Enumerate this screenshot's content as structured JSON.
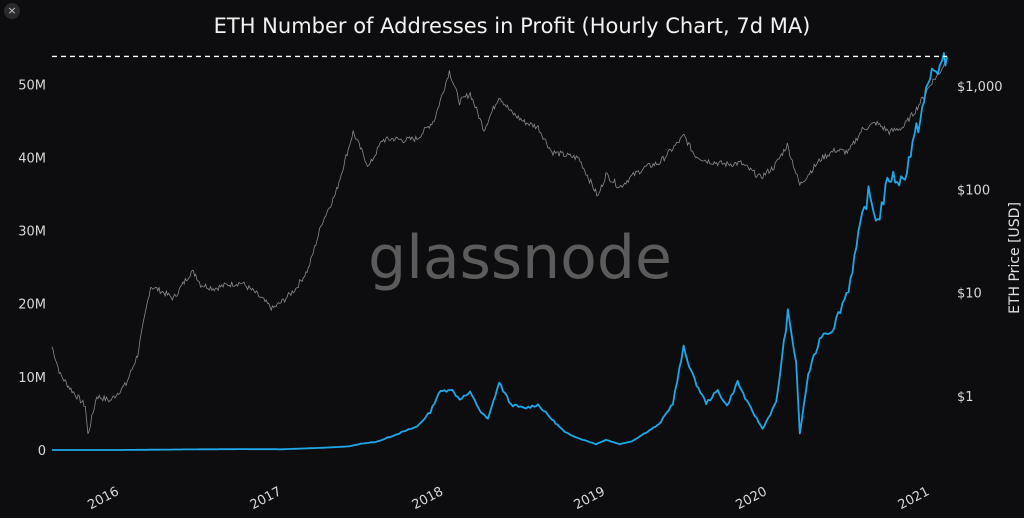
{
  "window": {
    "close_glyph": "×"
  },
  "watermark": "glassnode",
  "colors": {
    "background": "#0d0d0f",
    "profit_line": "#1fa8e8",
    "price_line": "#8a8a8a",
    "ath_line": "#ffffff"
  },
  "chart_data": {
    "type": "line",
    "title": "ETH Number of Addresses in Profit (Hourly Chart, 7d MA)",
    "xlabel": "",
    "ylabel_left": "",
    "ylabel_right": "ETH Price [USD]",
    "x_ticks": [
      "2016",
      "2017",
      "2018",
      "2019",
      "2020",
      "2021"
    ],
    "y_left_ticks": [
      "0",
      "10M",
      "20M",
      "30M",
      "40M",
      "50M"
    ],
    "y_left_values": [
      0,
      10000000,
      20000000,
      30000000,
      40000000,
      50000000
    ],
    "y_right_ticks": [
      "$1",
      "$10",
      "$100",
      "$1,000"
    ],
    "y_right_values": [
      1,
      10,
      100,
      1000
    ],
    "y_left_range": [
      0,
      54000000
    ],
    "y_right_scale": "log",
    "y_right_range": [
      0.3,
      2000
    ],
    "x_range": [
      "2015-08-01",
      "2021-02-08"
    ],
    "reference_line": {
      "label": "",
      "y": 53800000,
      "style": "dashed"
    },
    "grid": false,
    "series": [
      {
        "axis": "left",
        "points": [
          [
            "2015-08-01",
            0
          ],
          [
            "2016-01-01",
            0
          ],
          [
            "2016-06-01",
            80000
          ],
          [
            "2016-10-01",
            120000
          ],
          [
            "2017-01-01",
            100000
          ],
          [
            "2017-04-01",
            300000
          ],
          [
            "2017-06-01",
            500000
          ],
          [
            "2017-07-01",
            900000
          ],
          [
            "2017-08-01",
            1100000
          ],
          [
            "2017-09-01",
            1800000
          ],
          [
            "2017-10-01",
            2500000
          ],
          [
            "2017-11-01",
            3200000
          ],
          [
            "2017-12-01",
            5200000
          ],
          [
            "2017-12-20",
            7800000
          ],
          [
            "2018-01-15",
            8400000
          ],
          [
            "2018-02-05",
            7000000
          ],
          [
            "2018-03-01",
            7800000
          ],
          [
            "2018-03-25",
            5200000
          ],
          [
            "2018-04-10",
            4200000
          ],
          [
            "2018-05-05",
            9200000
          ],
          [
            "2018-06-01",
            6200000
          ],
          [
            "2018-07-01",
            5700000
          ],
          [
            "2018-08-01",
            6200000
          ],
          [
            "2018-09-01",
            4200000
          ],
          [
            "2018-10-01",
            2400000
          ],
          [
            "2018-11-01",
            1600000
          ],
          [
            "2018-12-10",
            800000
          ],
          [
            "2019-01-01",
            1400000
          ],
          [
            "2019-02-01",
            800000
          ],
          [
            "2019-03-01",
            1200000
          ],
          [
            "2019-04-01",
            2400000
          ],
          [
            "2019-05-01",
            3500000
          ],
          [
            "2019-06-01",
            6400000
          ],
          [
            "2019-06-25",
            13900000
          ],
          [
            "2019-07-20",
            9500000
          ],
          [
            "2019-08-15",
            6400000
          ],
          [
            "2019-09-10",
            8100000
          ],
          [
            "2019-10-01",
            6000000
          ],
          [
            "2019-10-25",
            9300000
          ],
          [
            "2019-11-15",
            6600000
          ],
          [
            "2019-12-20",
            2900000
          ],
          [
            "2020-01-20",
            6500000
          ],
          [
            "2020-02-15",
            18700000
          ],
          [
            "2020-03-05",
            12000000
          ],
          [
            "2020-03-13",
            2200000
          ],
          [
            "2020-04-01",
            10300000
          ],
          [
            "2020-05-01",
            15800000
          ],
          [
            "2020-05-25",
            16400000
          ],
          [
            "2020-07-01",
            22100000
          ],
          [
            "2020-08-01",
            31800000
          ],
          [
            "2020-08-15",
            35000000
          ],
          [
            "2020-09-05",
            31200000
          ],
          [
            "2020-10-01",
            37400000
          ],
          [
            "2020-11-01",
            36800000
          ],
          [
            "2020-12-01",
            43500000
          ],
          [
            "2021-01-05",
            51700000
          ],
          [
            "2021-02-01",
            52800000
          ],
          [
            "2021-02-08",
            53800000
          ]
        ]
      },
      {
        "axis": "right",
        "points": [
          [
            "2015-08-01",
            3.0
          ],
          [
            "2015-08-20",
            1.6
          ],
          [
            "2015-09-10",
            1.2
          ],
          [
            "2015-10-15",
            0.8
          ],
          [
            "2015-10-21",
            0.42
          ],
          [
            "2015-11-10",
            1.0
          ],
          [
            "2015-12-10",
            0.9
          ],
          [
            "2016-01-15",
            1.3
          ],
          [
            "2016-02-10",
            2.5
          ],
          [
            "2016-02-25",
            5.5
          ],
          [
            "2016-03-10",
            11.5
          ],
          [
            "2016-04-01",
            10.5
          ],
          [
            "2016-05-01",
            8.8
          ],
          [
            "2016-06-10",
            16.0
          ],
          [
            "2016-06-20",
            15.0
          ],
          [
            "2016-07-01",
            12.0
          ],
          [
            "2016-08-01",
            11.0
          ],
          [
            "2016-09-01",
            12.0
          ],
          [
            "2016-10-01",
            12.5
          ],
          [
            "2016-11-01",
            10.0
          ],
          [
            "2016-12-10",
            7.0
          ],
          [
            "2017-01-01",
            8.2
          ],
          [
            "2017-02-01",
            11.0
          ],
          [
            "2017-03-01",
            17.0
          ],
          [
            "2017-04-01",
            48.0
          ],
          [
            "2017-05-01",
            90.0
          ],
          [
            "2017-06-10",
            360.0
          ],
          [
            "2017-07-15",
            165.0
          ],
          [
            "2017-08-15",
            300.0
          ],
          [
            "2017-09-10",
            310.0
          ],
          [
            "2017-10-01",
            300.0
          ],
          [
            "2017-11-01",
            310.0
          ],
          [
            "2017-12-10",
            470.0
          ],
          [
            "2018-01-13",
            1400.0
          ],
          [
            "2018-02-05",
            700.0
          ],
          [
            "2018-03-01",
            850.0
          ],
          [
            "2018-04-01",
            380.0
          ],
          [
            "2018-05-05",
            800.0
          ],
          [
            "2018-06-01",
            560.0
          ],
          [
            "2018-07-01",
            450.0
          ],
          [
            "2018-08-01",
            400.0
          ],
          [
            "2018-09-01",
            230.0
          ],
          [
            "2018-10-01",
            215.0
          ],
          [
            "2018-11-01",
            200.0
          ],
          [
            "2018-12-14",
            85.0
          ],
          [
            "2019-01-01",
            140.0
          ],
          [
            "2019-02-01",
            105.0
          ],
          [
            "2019-03-01",
            135.0
          ],
          [
            "2019-04-01",
            165.0
          ],
          [
            "2019-05-01",
            180.0
          ],
          [
            "2019-06-01",
            250.0
          ],
          [
            "2019-06-26",
            330.0
          ],
          [
            "2019-07-20",
            215.0
          ],
          [
            "2019-08-15",
            190.0
          ],
          [
            "2019-09-10",
            180.0
          ],
          [
            "2019-10-01",
            175.0
          ],
          [
            "2019-11-01",
            180.0
          ],
          [
            "2019-12-15",
            130.0
          ],
          [
            "2020-01-15",
            165.0
          ],
          [
            "2020-02-14",
            270.0
          ],
          [
            "2020-03-13",
            110.0
          ],
          [
            "2020-04-01",
            140.0
          ],
          [
            "2020-05-01",
            200.0
          ],
          [
            "2020-06-01",
            240.0
          ],
          [
            "2020-07-01",
            230.0
          ],
          [
            "2020-08-01",
            380.0
          ],
          [
            "2020-09-01",
            440.0
          ],
          [
            "2020-10-01",
            360.0
          ],
          [
            "2020-11-01",
            400.0
          ],
          [
            "2020-12-01",
            600.0
          ],
          [
            "2021-01-05",
            1100.0
          ],
          [
            "2021-01-20",
            1300.0
          ],
          [
            "2021-02-08",
            1850.0
          ]
        ]
      }
    ]
  }
}
